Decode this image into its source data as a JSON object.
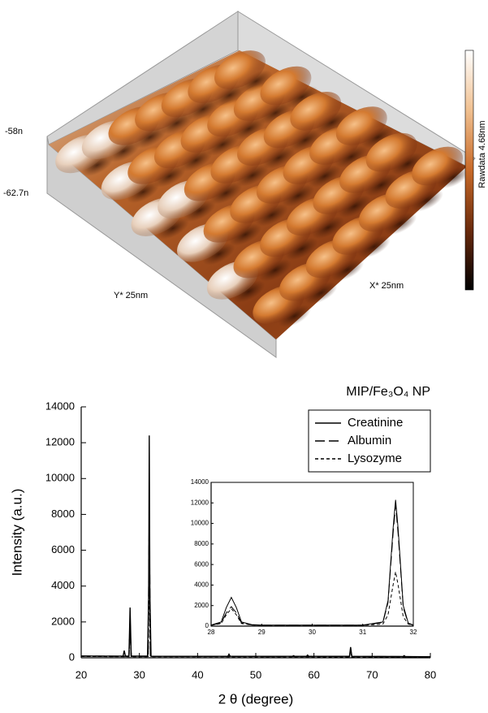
{
  "afm": {
    "z_top": "-58n",
    "z_bottom": "-62.7n",
    "y_label": "Y* 25nm",
    "x_label": "X* 25nm",
    "colorbar_label": "Rawdata 4.68nm"
  },
  "chart_data": [
    {
      "type": "line",
      "title": "MIP/Fe₃O₄ NP",
      "xlabel": "2 θ (degree)",
      "ylabel": "Intensity (a.u.)",
      "xlim": [
        20,
        80
      ],
      "xticks": [
        20,
        30,
        40,
        50,
        60,
        70,
        80
      ],
      "ylim": [
        0,
        14000
      ],
      "yticks": [
        0,
        2000,
        4000,
        6000,
        8000,
        10000,
        12000,
        14000
      ],
      "legend": "upper right",
      "grid": false,
      "series": [
        {
          "name": "Creatinine",
          "color": "#000000",
          "line_style": "solid",
          "x": [
            20,
            27.2,
            27.4,
            27.6,
            28.2,
            28.4,
            28.6,
            31.4,
            31.6,
            31.7,
            31.8,
            32.0,
            45.2,
            45.4,
            45.6,
            56.3,
            56.5,
            56.7,
            58.7,
            58.9,
            59.1,
            66.1,
            66.3,
            66.5,
            75.3,
            75.5,
            75.7,
            80
          ],
          "values": [
            100,
            90,
            400,
            90,
            90,
            2800,
            90,
            90,
            3500,
            12400,
            3500,
            80,
            80,
            200,
            80,
            80,
            120,
            80,
            80,
            150,
            80,
            80,
            600,
            80,
            70,
            120,
            70,
            60
          ]
        },
        {
          "name": "Albumin",
          "color": "#000000",
          "line_style": "dash",
          "x": [
            20,
            28.2,
            28.4,
            28.6,
            31.5,
            31.7,
            31.9,
            66.1,
            66.3,
            66.5,
            80
          ],
          "values": [
            90,
            80,
            2000,
            80,
            80,
            7500,
            80,
            70,
            400,
            70,
            60
          ]
        },
        {
          "name": "Lysozyme",
          "color": "#000000",
          "line_style": "shortdash",
          "x": [
            20,
            28.2,
            28.4,
            28.6,
            31.5,
            31.7,
            31.9,
            80
          ],
          "values": [
            80,
            70,
            1700,
            70,
            70,
            5300,
            70,
            50
          ]
        }
      ]
    },
    {
      "type": "line",
      "xlim": [
        28,
        32
      ],
      "xticks": [
        28,
        29,
        30,
        31,
        32
      ],
      "ylim": [
        0,
        14000
      ],
      "yticks": [
        0,
        2000,
        4000,
        6000,
        8000,
        10000,
        12000,
        14000
      ],
      "grid": false,
      "series": [
        {
          "color": "#000000",
          "line_style": "solid",
          "x": [
            28,
            28.2,
            28.3,
            28.4,
            28.5,
            28.6,
            28.8,
            29,
            30,
            31,
            31.4,
            31.5,
            31.6,
            31.65,
            31.7,
            31.8,
            31.9,
            32
          ],
          "values": [
            100,
            400,
            1800,
            2800,
            1800,
            400,
            150,
            100,
            100,
            100,
            400,
            2500,
            9500,
            12300,
            9500,
            2000,
            300,
            100
          ]
        },
        {
          "color": "#000000",
          "line_style": "dash",
          "x": [
            28,
            28.2,
            28.3,
            28.4,
            28.5,
            28.6,
            28.8,
            29,
            30,
            31,
            31.4,
            31.5,
            31.6,
            31.65,
            31.7,
            31.8,
            31.9,
            32
          ],
          "values": [
            90,
            300,
            1300,
            1900,
            1300,
            300,
            120,
            90,
            90,
            90,
            350,
            2300,
            9000,
            11800,
            9000,
            1800,
            250,
            90
          ]
        },
        {
          "color": "#000000",
          "line_style": "shortdash",
          "x": [
            28,
            28.2,
            28.3,
            28.4,
            28.5,
            28.6,
            28.8,
            29,
            30,
            31,
            31.4,
            31.5,
            31.6,
            31.65,
            31.7,
            31.8,
            31.9,
            32
          ],
          "values": [
            80,
            250,
            1100,
            1700,
            1100,
            250,
            110,
            80,
            80,
            80,
            200,
            1100,
            4000,
            5300,
            4000,
            900,
            200,
            80
          ]
        }
      ]
    }
  ]
}
